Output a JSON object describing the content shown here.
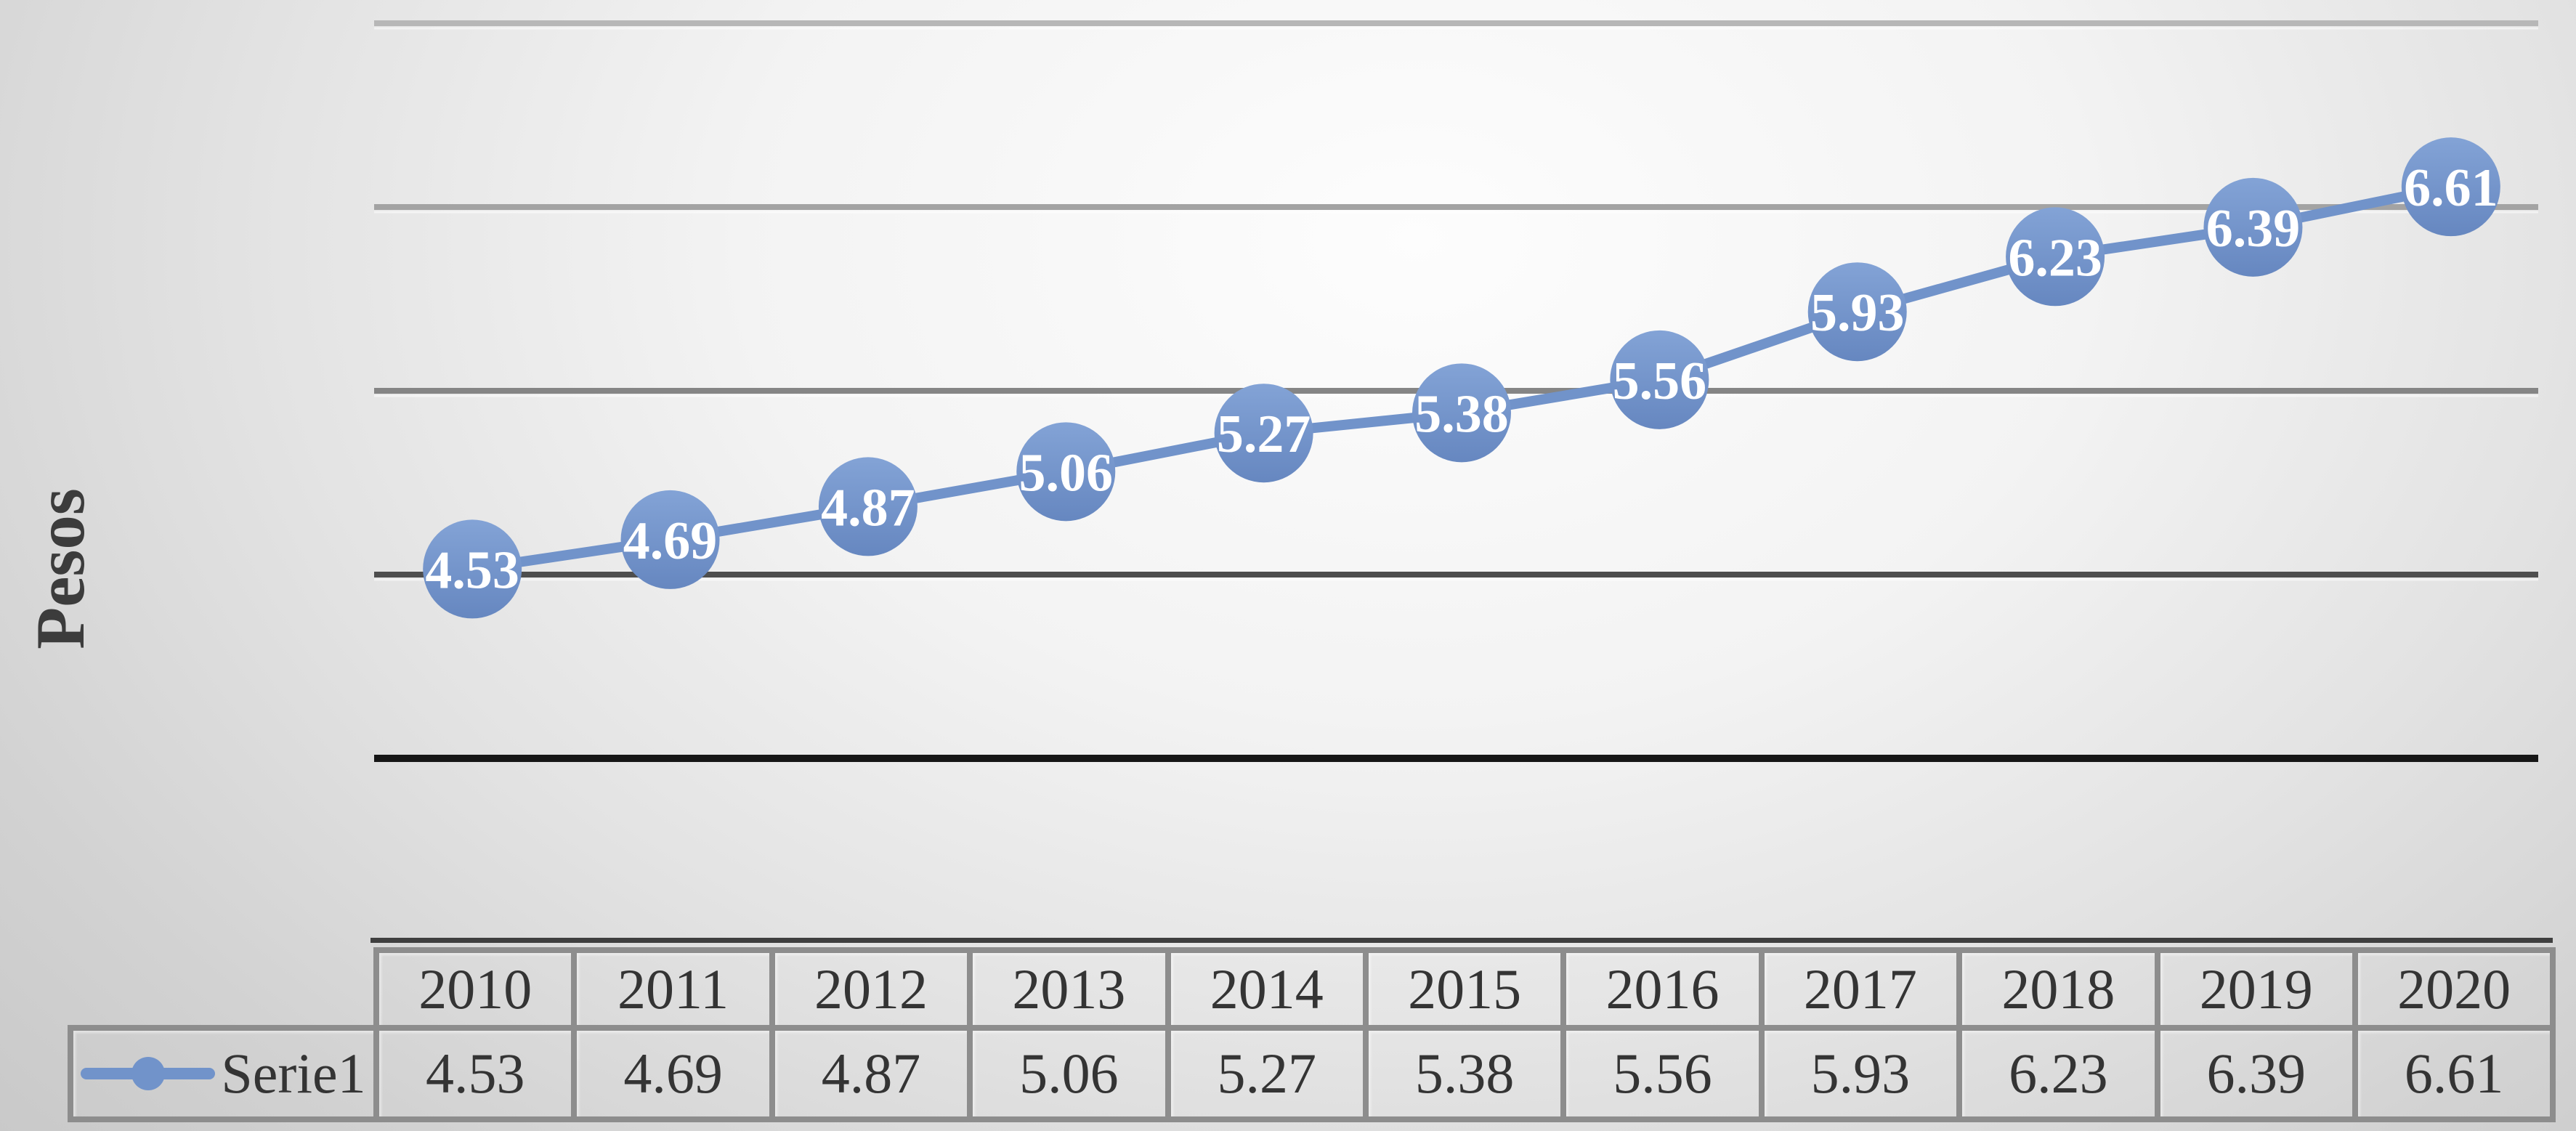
{
  "figure": {
    "kind": "excel-style line chart with data table",
    "ylabel": "Pesos"
  },
  "colors": {
    "series_blue": "#7193CA",
    "marker_blue_top": "#83A3D6",
    "marker_blue_bottom": "#6687C0",
    "data_label_white": "#FFFFFF",
    "axis_black": "#161616",
    "text_dark": "#343434",
    "ylabel_dark": "#3C3C3C",
    "table_border_gray": "#8D8D8D",
    "table_accent_dark": "#3F3F3F"
  },
  "chart_data": {
    "type": "line",
    "title": "",
    "xlabel": "",
    "ylabel": "Pesos",
    "categories": [
      "2010",
      "2011",
      "2012",
      "2013",
      "2014",
      "2015",
      "2016",
      "2017",
      "2018",
      "2019",
      "2020"
    ],
    "series": [
      {
        "name": "Serie1",
        "values": [
          4.53,
          4.69,
          4.87,
          5.06,
          5.27,
          5.38,
          5.56,
          5.93,
          6.23,
          6.39,
          6.61
        ],
        "value_labels": [
          "4.53",
          "4.69",
          "4.87",
          "5.06",
          "5.27",
          "5.38",
          "5.56",
          "5.93",
          "6.23",
          "6.39",
          "6.61"
        ]
      }
    ],
    "axis": {
      "ymin": 3.5,
      "ymax": 7.5,
      "major_unit": 1.0,
      "tick_labels_visible": false,
      "gridlines": [
        {
          "value": 7.5,
          "color": "#B7B7B7"
        },
        {
          "value": 6.5,
          "color": "#A3A3A3"
        },
        {
          "value": 5.5,
          "color": "#858585"
        },
        {
          "value": 4.5,
          "color": "#4E4E4E"
        }
      ]
    },
    "grid": true,
    "data_labels_position": "center",
    "legend_position": "bottom-table-left",
    "data_table_visible": true
  }
}
